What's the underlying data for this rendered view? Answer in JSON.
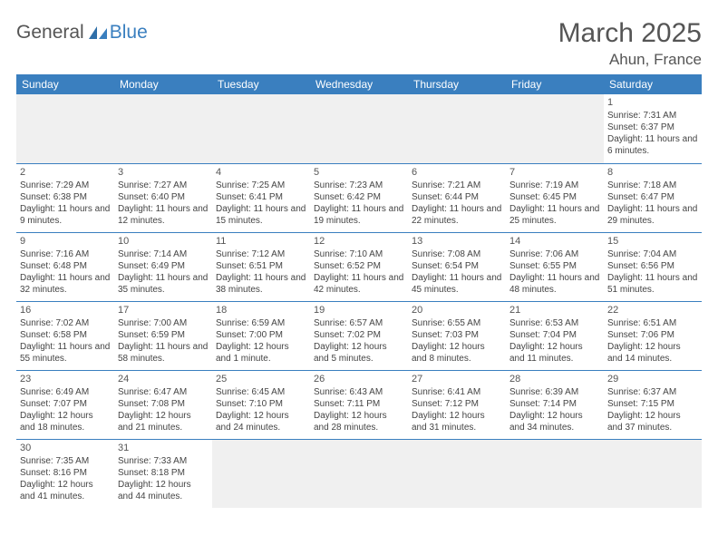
{
  "brand": {
    "part1": "General",
    "part2": "Blue"
  },
  "title": "March 2025",
  "location": "Ahun, France",
  "colors": {
    "header_bg": "#3a7fbf",
    "header_text": "#ffffff",
    "border": "#3a7fbf",
    "empty_bg": "#f0f0f0",
    "text": "#444444",
    "title_text": "#555555"
  },
  "weekdays": [
    "Sunday",
    "Monday",
    "Tuesday",
    "Wednesday",
    "Thursday",
    "Friday",
    "Saturday"
  ],
  "days": [
    {
      "n": 1,
      "sunrise": "Sunrise: 7:31 AM",
      "sunset": "Sunset: 6:37 PM",
      "daylight": "Daylight: 11 hours and 6 minutes."
    },
    {
      "n": 2,
      "sunrise": "Sunrise: 7:29 AM",
      "sunset": "Sunset: 6:38 PM",
      "daylight": "Daylight: 11 hours and 9 minutes."
    },
    {
      "n": 3,
      "sunrise": "Sunrise: 7:27 AM",
      "sunset": "Sunset: 6:40 PM",
      "daylight": "Daylight: 11 hours and 12 minutes."
    },
    {
      "n": 4,
      "sunrise": "Sunrise: 7:25 AM",
      "sunset": "Sunset: 6:41 PM",
      "daylight": "Daylight: 11 hours and 15 minutes."
    },
    {
      "n": 5,
      "sunrise": "Sunrise: 7:23 AM",
      "sunset": "Sunset: 6:42 PM",
      "daylight": "Daylight: 11 hours and 19 minutes."
    },
    {
      "n": 6,
      "sunrise": "Sunrise: 7:21 AM",
      "sunset": "Sunset: 6:44 PM",
      "daylight": "Daylight: 11 hours and 22 minutes."
    },
    {
      "n": 7,
      "sunrise": "Sunrise: 7:19 AM",
      "sunset": "Sunset: 6:45 PM",
      "daylight": "Daylight: 11 hours and 25 minutes."
    },
    {
      "n": 8,
      "sunrise": "Sunrise: 7:18 AM",
      "sunset": "Sunset: 6:47 PM",
      "daylight": "Daylight: 11 hours and 29 minutes."
    },
    {
      "n": 9,
      "sunrise": "Sunrise: 7:16 AM",
      "sunset": "Sunset: 6:48 PM",
      "daylight": "Daylight: 11 hours and 32 minutes."
    },
    {
      "n": 10,
      "sunrise": "Sunrise: 7:14 AM",
      "sunset": "Sunset: 6:49 PM",
      "daylight": "Daylight: 11 hours and 35 minutes."
    },
    {
      "n": 11,
      "sunrise": "Sunrise: 7:12 AM",
      "sunset": "Sunset: 6:51 PM",
      "daylight": "Daylight: 11 hours and 38 minutes."
    },
    {
      "n": 12,
      "sunrise": "Sunrise: 7:10 AM",
      "sunset": "Sunset: 6:52 PM",
      "daylight": "Daylight: 11 hours and 42 minutes."
    },
    {
      "n": 13,
      "sunrise": "Sunrise: 7:08 AM",
      "sunset": "Sunset: 6:54 PM",
      "daylight": "Daylight: 11 hours and 45 minutes."
    },
    {
      "n": 14,
      "sunrise": "Sunrise: 7:06 AM",
      "sunset": "Sunset: 6:55 PM",
      "daylight": "Daylight: 11 hours and 48 minutes."
    },
    {
      "n": 15,
      "sunrise": "Sunrise: 7:04 AM",
      "sunset": "Sunset: 6:56 PM",
      "daylight": "Daylight: 11 hours and 51 minutes."
    },
    {
      "n": 16,
      "sunrise": "Sunrise: 7:02 AM",
      "sunset": "Sunset: 6:58 PM",
      "daylight": "Daylight: 11 hours and 55 minutes."
    },
    {
      "n": 17,
      "sunrise": "Sunrise: 7:00 AM",
      "sunset": "Sunset: 6:59 PM",
      "daylight": "Daylight: 11 hours and 58 minutes."
    },
    {
      "n": 18,
      "sunrise": "Sunrise: 6:59 AM",
      "sunset": "Sunset: 7:00 PM",
      "daylight": "Daylight: 12 hours and 1 minute."
    },
    {
      "n": 19,
      "sunrise": "Sunrise: 6:57 AM",
      "sunset": "Sunset: 7:02 PM",
      "daylight": "Daylight: 12 hours and 5 minutes."
    },
    {
      "n": 20,
      "sunrise": "Sunrise: 6:55 AM",
      "sunset": "Sunset: 7:03 PM",
      "daylight": "Daylight: 12 hours and 8 minutes."
    },
    {
      "n": 21,
      "sunrise": "Sunrise: 6:53 AM",
      "sunset": "Sunset: 7:04 PM",
      "daylight": "Daylight: 12 hours and 11 minutes."
    },
    {
      "n": 22,
      "sunrise": "Sunrise: 6:51 AM",
      "sunset": "Sunset: 7:06 PM",
      "daylight": "Daylight: 12 hours and 14 minutes."
    },
    {
      "n": 23,
      "sunrise": "Sunrise: 6:49 AM",
      "sunset": "Sunset: 7:07 PM",
      "daylight": "Daylight: 12 hours and 18 minutes."
    },
    {
      "n": 24,
      "sunrise": "Sunrise: 6:47 AM",
      "sunset": "Sunset: 7:08 PM",
      "daylight": "Daylight: 12 hours and 21 minutes."
    },
    {
      "n": 25,
      "sunrise": "Sunrise: 6:45 AM",
      "sunset": "Sunset: 7:10 PM",
      "daylight": "Daylight: 12 hours and 24 minutes."
    },
    {
      "n": 26,
      "sunrise": "Sunrise: 6:43 AM",
      "sunset": "Sunset: 7:11 PM",
      "daylight": "Daylight: 12 hours and 28 minutes."
    },
    {
      "n": 27,
      "sunrise": "Sunrise: 6:41 AM",
      "sunset": "Sunset: 7:12 PM",
      "daylight": "Daylight: 12 hours and 31 minutes."
    },
    {
      "n": 28,
      "sunrise": "Sunrise: 6:39 AM",
      "sunset": "Sunset: 7:14 PM",
      "daylight": "Daylight: 12 hours and 34 minutes."
    },
    {
      "n": 29,
      "sunrise": "Sunrise: 6:37 AM",
      "sunset": "Sunset: 7:15 PM",
      "daylight": "Daylight: 12 hours and 37 minutes."
    },
    {
      "n": 30,
      "sunrise": "Sunrise: 7:35 AM",
      "sunset": "Sunset: 8:16 PM",
      "daylight": "Daylight: 12 hours and 41 minutes."
    },
    {
      "n": 31,
      "sunrise": "Sunrise: 7:33 AM",
      "sunset": "Sunset: 8:18 PM",
      "daylight": "Daylight: 12 hours and 44 minutes."
    }
  ],
  "layout": {
    "first_weekday_index": 6,
    "num_days": 31,
    "cols": 7
  }
}
